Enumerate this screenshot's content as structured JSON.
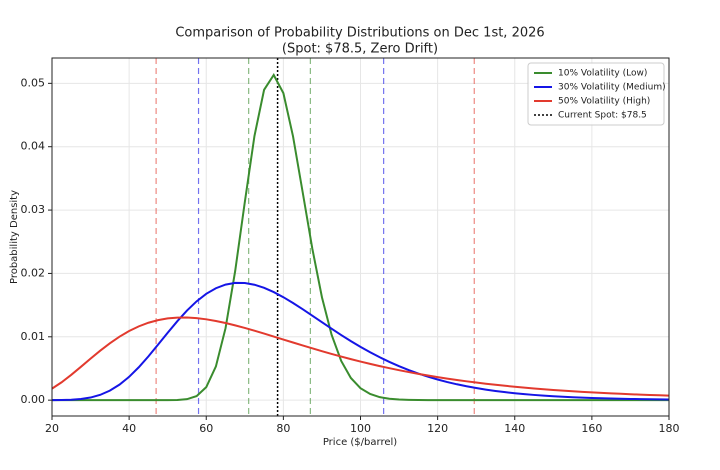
{
  "chart_data": {
    "type": "line",
    "title": "Comparison of Probability Distributions on Dec 1st, 2026",
    "subtitle": "(Spot: $78.5, Zero Drift)",
    "x_label": "Price ($/barrel)",
    "y_label": "Probability Density",
    "x": [
      20,
      22.5,
      25,
      27.5,
      30,
      32.5,
      35,
      37.5,
      40,
      42.5,
      45,
      47.5,
      50,
      52.5,
      55,
      57.5,
      60,
      62.5,
      65,
      67.5,
      70,
      72.5,
      75,
      77.5,
      80,
      82.5,
      85,
      87.5,
      90,
      92.5,
      95,
      97.5,
      100,
      102.5,
      105,
      107.5,
      110,
      112.5,
      115,
      117.5,
      120,
      122.5,
      125,
      127.5,
      130,
      132.5,
      135,
      137.5,
      140,
      142.5,
      145,
      147.5,
      150,
      152.5,
      155,
      157.5,
      160,
      162.5,
      165,
      167.5,
      170,
      172.5,
      175,
      177.5,
      180
    ],
    "series": [
      {
        "name": "10% Volatility (Low)",
        "color": "#3a8c2e",
        "bounds": [
          71,
          87
        ],
        "values": [
          0,
          0,
          0,
          0,
          0,
          0,
          0,
          0,
          0,
          0,
          0,
          0,
          3.8e-06,
          2.84e-05,
          0.000155,
          0.000636,
          0.002052,
          0.00532,
          0.011353,
          0.020369,
          0.031259,
          0.041688,
          0.048982,
          0.051319,
          0.048461,
          0.041638,
          0.03283,
          0.023931,
          0.016241,
          0.010323,
          0.006179,
          0.003501,
          0.001885,
          0.00097,
          0.000477,
          0.000226,
          0.000103,
          4.56e-05,
          1.95e-05,
          0,
          0,
          0,
          0,
          0,
          0,
          0,
          0,
          0,
          0,
          0,
          0,
          0,
          0,
          0,
          0,
          0,
          0,
          0,
          0,
          0,
          0,
          0,
          0,
          0,
          0
        ]
      },
      {
        "name": "30% Volatility (Medium)",
        "color": "#1515e6",
        "bounds": [
          58,
          106
        ],
        "values": [
          4e-06,
          1.86e-05,
          6.46e-05,
          0.000179,
          0.000415,
          0.000836,
          0.0015,
          0.002446,
          0.003685,
          0.005191,
          0.006909,
          0.008757,
          0.01064,
          0.012463,
          0.014138,
          0.015595,
          0.016783,
          0.017667,
          0.018241,
          0.01851,
          0.018493,
          0.018221,
          0.017731,
          0.017061,
          0.01625,
          0.015336,
          0.014353,
          0.013332,
          0.012299,
          0.011276,
          0.010279,
          0.009321,
          0.008413,
          0.007561,
          0.006768,
          0.006036,
          0.005366,
          0.004755,
          0.004203,
          0.003705,
          0.003258,
          0.00286,
          0.002505,
          0.00219,
          0.001912,
          0.001666,
          0.001451,
          0.001261,
          0.001096,
          0.00095,
          0.000824,
          0.000713,
          0.000617,
          0.000534,
          0.000461,
          0.000399,
          0.000344,
          0.000297,
          0.000256,
          0.000221,
          0.000191,
          0.000164,
          0.000142,
          0.000122,
          0.000105
        ]
      },
      {
        "name": "50% Volatility (High)",
        "color": "#e23a2e",
        "bounds": [
          47,
          129.5
        ],
        "values": [
          0.001821,
          0.002826,
          0.003997,
          0.005262,
          0.006553,
          0.007807,
          0.008973,
          0.010017,
          0.010911,
          0.011647,
          0.01222,
          0.012635,
          0.012901,
          0.013032,
          0.013041,
          0.012945,
          0.012759,
          0.012498,
          0.012176,
          0.011805,
          0.011396,
          0.01096,
          0.010505,
          0.010039,
          0.009569,
          0.009098,
          0.008634,
          0.008176,
          0.00773,
          0.007298,
          0.00688,
          0.006478,
          0.006094,
          0.005727,
          0.005377,
          0.005045,
          0.00473,
          0.004432,
          0.004151,
          0.003886,
          0.003636,
          0.003401,
          0.00318,
          0.002973,
          0.002779,
          0.002597,
          0.002426,
          0.002267,
          0.002118,
          0.001978,
          0.001848,
          0.001726,
          0.001612,
          0.001506,
          0.001407,
          0.001314,
          0.001228,
          0.001147,
          0.001072,
          0.001002,
          0.000937,
          0.000875,
          0.000818,
          0.000765,
          0.000716
        ]
      }
    ],
    "spot": {
      "name": "Current Spot: $78.5",
      "value": 78.5,
      "color": "#000000"
    },
    "xlim": [
      20,
      180
    ],
    "xticks": [
      20,
      40,
      60,
      80,
      100,
      120,
      140,
      160,
      180
    ],
    "ylim": [
      -0.0025,
      0.054
    ],
    "yticks": [
      {
        "value": 0,
        "label": "0.00"
      },
      {
        "value": 0.01,
        "label": "0.01"
      },
      {
        "value": 0.02,
        "label": "0.02"
      },
      {
        "value": 0.03,
        "label": "0.03"
      },
      {
        "value": 0.04,
        "label": "0.04"
      },
      {
        "value": 0.05,
        "label": "0.05"
      }
    ],
    "grid": true,
    "legend": "upper right"
  }
}
